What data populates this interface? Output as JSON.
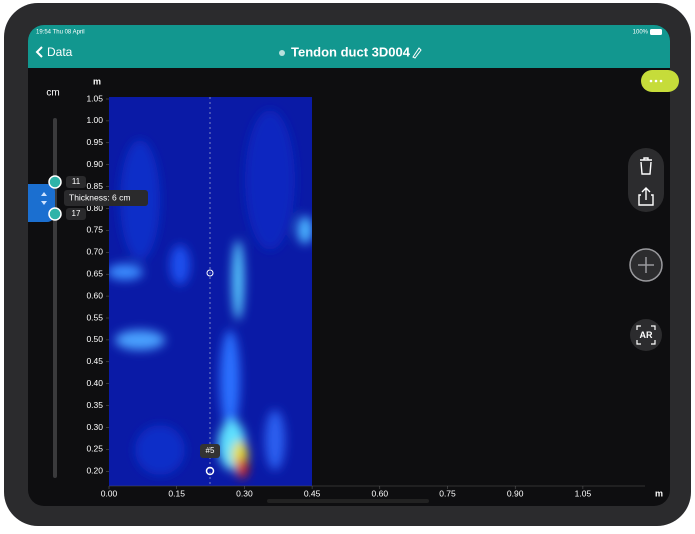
{
  "status_bar": {
    "time": "19:54 Thu 08 April",
    "battery": "100%"
  },
  "nav": {
    "back": "Data",
    "title": "Tendon duct 3D004"
  },
  "depth_control": {
    "unit": "cm",
    "upper": "11",
    "lower": "17",
    "tooltip": "Thickness: 6 cm"
  },
  "scan": {
    "y_unit": "m",
    "x_unit": "m",
    "marker": "#5",
    "y_ticks": [
      {
        "value": 1.05,
        "label": "1.05"
      },
      {
        "value": 1.0,
        "label": "1.00"
      },
      {
        "value": 0.95,
        "label": "0.95"
      },
      {
        "value": 0.9,
        "label": "0.90"
      },
      {
        "value": 0.85,
        "label": "0.85"
      },
      {
        "value": 0.8,
        "label": "0.80"
      },
      {
        "value": 0.75,
        "label": "0.75"
      },
      {
        "value": 0.7,
        "label": "0.70"
      },
      {
        "value": 0.65,
        "label": "0.65"
      },
      {
        "value": 0.6,
        "label": "0.60"
      },
      {
        "value": 0.55,
        "label": "0.55"
      },
      {
        "value": 0.5,
        "label": "0.50"
      },
      {
        "value": 0.45,
        "label": "0.45"
      },
      {
        "value": 0.4,
        "label": "0.40"
      },
      {
        "value": 0.35,
        "label": "0.35"
      },
      {
        "value": 0.3,
        "label": "0.30"
      },
      {
        "value": 0.25,
        "label": "0.25"
      },
      {
        "value": 0.2,
        "label": "0.20"
      }
    ],
    "x_ticks": [
      {
        "value": 0,
        "label": "0.00"
      },
      {
        "value": 0.15,
        "label": "0.15"
      },
      {
        "value": 0.3,
        "label": "0.30"
      },
      {
        "value": 0.45,
        "label": "0.45"
      },
      {
        "value": 0.6,
        "label": "0.60"
      },
      {
        "value": 0.75,
        "label": "0.75"
      },
      {
        "value": 0.9,
        "label": "0.90"
      },
      {
        "value": 1.05,
        "label": "1.05"
      }
    ]
  },
  "actions": {
    "ar": "AR"
  }
}
